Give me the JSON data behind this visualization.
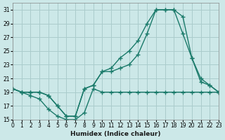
{
  "xlabel": "Humidex (Indice chaleur)",
  "ylabel": "",
  "background_color": "#cce8e8",
  "grid_color": "#aacccc",
  "line_color": "#1a7a6a",
  "xlim": [
    0,
    23
  ],
  "ylim": [
    15,
    32
  ],
  "xticks": [
    0,
    1,
    2,
    3,
    4,
    5,
    6,
    7,
    8,
    9,
    10,
    11,
    12,
    13,
    14,
    15,
    16,
    17,
    18,
    19,
    20,
    21,
    22,
    23
  ],
  "yticks": [
    15,
    17,
    19,
    21,
    23,
    25,
    27,
    29,
    31
  ],
  "curve1_x": [
    0,
    1,
    2,
    3,
    4,
    5,
    6,
    7,
    8,
    9,
    10,
    11,
    12,
    13,
    14,
    15,
    16,
    17,
    18,
    19,
    20,
    21,
    22,
    23
  ],
  "curve1_y": [
    19.5,
    19,
    18.5,
    18,
    16.5,
    15.5,
    15,
    15,
    16,
    19.5,
    19,
    19,
    19,
    19,
    19,
    19,
    19,
    19,
    19,
    19,
    19,
    19,
    19,
    19
  ],
  "curve2_x": [
    0,
    1,
    2,
    3,
    4,
    5,
    6,
    7,
    8,
    9,
    10,
    11,
    12,
    13,
    14,
    15,
    16,
    17,
    18,
    19,
    20,
    21,
    22,
    23
  ],
  "curve2_y": [
    19.5,
    19,
    19,
    19,
    18.5,
    17,
    15.5,
    15.5,
    19.5,
    20,
    22,
    22,
    22.5,
    23,
    24.5,
    27.5,
    31,
    31,
    31,
    30,
    24,
    20.5,
    20,
    19
  ],
  "curve3_x": [
    0,
    1,
    2,
    3,
    4,
    5,
    6,
    7,
    8,
    9,
    10,
    11,
    12,
    13,
    14,
    15,
    16,
    17,
    18,
    19,
    20,
    21,
    22,
    23
  ],
  "curve3_y": [
    19.5,
    19,
    19,
    19,
    18.5,
    17,
    15.5,
    15.5,
    19.5,
    20,
    22,
    22.5,
    24,
    25,
    26.5,
    29,
    31,
    31,
    31,
    27.5,
    24,
    21,
    20,
    19
  ]
}
